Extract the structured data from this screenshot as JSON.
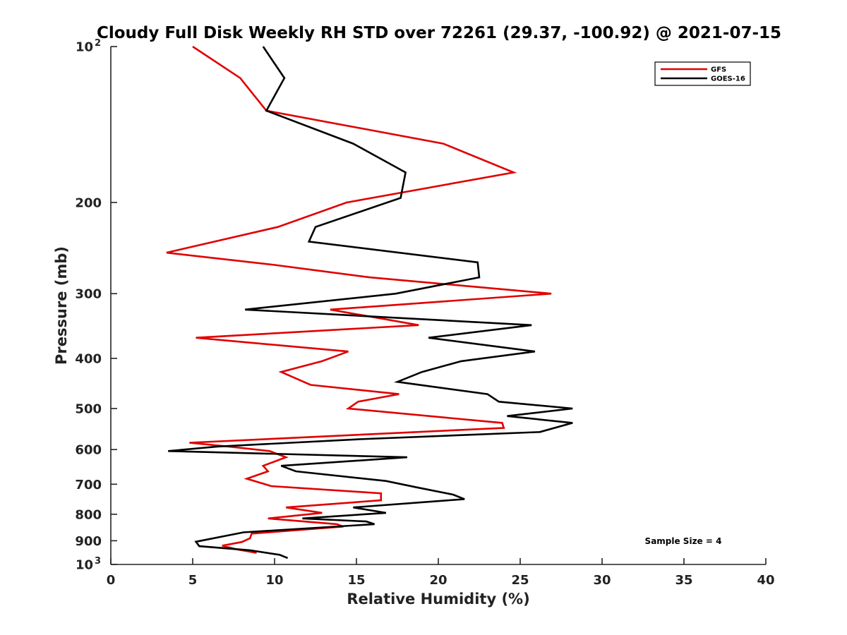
{
  "chart_data": {
    "type": "line",
    "title": "Cloudy Full Disk Weekly RH STD over 72261 (29.37, -100.92) @ 2021-07-15",
    "xlabel": "Relative Humidity (%)",
    "ylabel": "Pressure (mb)",
    "xlim": [
      0,
      40
    ],
    "ylim": [
      100,
      1000
    ],
    "y_scale": "log",
    "y_reversed": true,
    "x_ticks": [
      {
        "value": 0,
        "label": "0"
      },
      {
        "value": 5,
        "label": "5"
      },
      {
        "value": 10,
        "label": "10"
      },
      {
        "value": 15,
        "label": "15"
      },
      {
        "value": 20,
        "label": "20"
      },
      {
        "value": 25,
        "label": "25"
      },
      {
        "value": 30,
        "label": "30"
      },
      {
        "value": 35,
        "label": "35"
      },
      {
        "value": 40,
        "label": "40"
      }
    ],
    "y_ticks": [
      {
        "value": 100,
        "label": "10",
        "exp": "2"
      },
      {
        "value": 200,
        "label": "200"
      },
      {
        "value": 300,
        "label": "300"
      },
      {
        "value": 400,
        "label": "400"
      },
      {
        "value": 500,
        "label": "500"
      },
      {
        "value": 600,
        "label": "600"
      },
      {
        "value": 700,
        "label": "700"
      },
      {
        "value": 800,
        "label": "800"
      },
      {
        "value": 900,
        "label": "900"
      },
      {
        "value": 1000,
        "label": "10",
        "exp": "3"
      }
    ],
    "grid": false,
    "legend_position": "top-right",
    "annotation": "Sample Size = 4",
    "series": [
      {
        "name": "GFS",
        "color": "#e00000",
        "points": [
          [
            5.0,
            100
          ],
          [
            7.9,
            115
          ],
          [
            9.5,
            133
          ],
          [
            20.3,
            154
          ],
          [
            24.6,
            175
          ],
          [
            14.4,
            200
          ],
          [
            10.2,
            223
          ],
          [
            3.4,
            250
          ],
          [
            10.0,
            264
          ],
          [
            15.8,
            279
          ],
          [
            26.9,
            300
          ],
          [
            13.4,
            322
          ],
          [
            18.8,
            345
          ],
          [
            5.2,
            365
          ],
          [
            14.5,
            388
          ],
          [
            12.9,
            405
          ],
          [
            10.4,
            425
          ],
          [
            12.2,
            450
          ],
          [
            17.6,
            469
          ],
          [
            15.1,
            485
          ],
          [
            14.5,
            500
          ],
          [
            23.9,
            533
          ],
          [
            24.0,
            545
          ],
          [
            4.8,
            582
          ],
          [
            7.2,
            592
          ],
          [
            9.7,
            604
          ],
          [
            10.7,
            621
          ],
          [
            9.3,
            645
          ],
          [
            9.6,
            661
          ],
          [
            8.3,
            683
          ],
          [
            9.8,
            706
          ],
          [
            16.5,
            729
          ],
          [
            16.5,
            752
          ],
          [
            10.7,
            776
          ],
          [
            12.9,
            795
          ],
          [
            9.6,
            815
          ],
          [
            13.8,
            836
          ],
          [
            14.2,
            845
          ],
          [
            8.6,
            872
          ],
          [
            8.5,
            890
          ],
          [
            8.0,
            905
          ],
          [
            6.8,
            920
          ],
          [
            7.7,
            935
          ],
          [
            8.9,
            950
          ]
        ]
      },
      {
        "name": "GOES-16",
        "color": "#000000",
        "points": [
          [
            9.3,
            100
          ],
          [
            10.6,
            115
          ],
          [
            9.5,
            133
          ],
          [
            14.8,
            154
          ],
          [
            18.0,
            175
          ],
          [
            17.7,
            196
          ],
          [
            12.5,
            223
          ],
          [
            12.1,
            238
          ],
          [
            22.4,
            261
          ],
          [
            22.5,
            279
          ],
          [
            17.4,
            300
          ],
          [
            8.2,
            322
          ],
          [
            25.7,
            345
          ],
          [
            19.4,
            365
          ],
          [
            25.9,
            388
          ],
          [
            21.4,
            405
          ],
          [
            19.0,
            425
          ],
          [
            17.5,
            444
          ],
          [
            23.0,
            469
          ],
          [
            23.7,
            485
          ],
          [
            28.2,
            500
          ],
          [
            24.2,
            517
          ],
          [
            28.2,
            533
          ],
          [
            26.2,
            555
          ],
          [
            15.2,
            573
          ],
          [
            6.5,
            592
          ],
          [
            3.5,
            604
          ],
          [
            18.1,
            621
          ],
          [
            10.4,
            645
          ],
          [
            11.3,
            661
          ],
          [
            16.8,
            690
          ],
          [
            18.7,
            710
          ],
          [
            20.9,
            733
          ],
          [
            21.6,
            748
          ],
          [
            14.8,
            776
          ],
          [
            16.8,
            795
          ],
          [
            11.7,
            815
          ],
          [
            15.6,
            826
          ],
          [
            16.1,
            836
          ],
          [
            8.1,
            867
          ],
          [
            5.2,
            904
          ],
          [
            5.4,
            922
          ],
          [
            8.5,
            939
          ],
          [
            10.3,
            958
          ],
          [
            10.8,
            972
          ]
        ]
      }
    ]
  }
}
